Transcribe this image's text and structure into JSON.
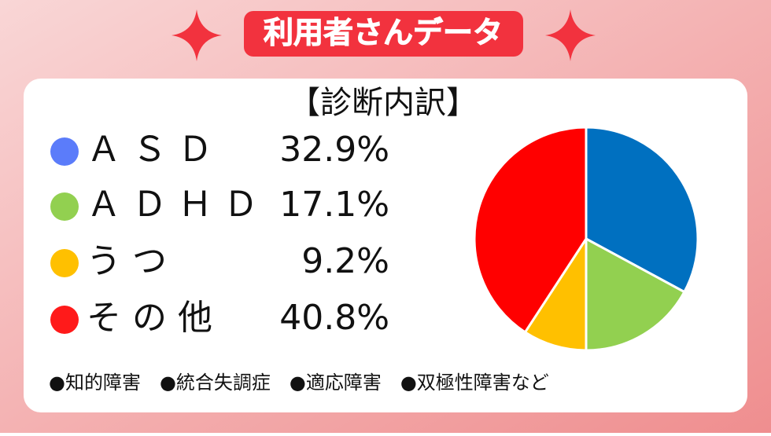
{
  "chart_data": {
    "type": "pie",
    "title": "利用者さんデータ",
    "subtitle": "【診断内訳】",
    "categories": [
      "ＡＳＤ",
      "ＡＤＨＤ",
      "うつ",
      "その他"
    ],
    "values": [
      32.9,
      17.1,
      9.2,
      40.8
    ],
    "value_labels": [
      "32.9%",
      "17.1%",
      "9.2%",
      "40.8%"
    ],
    "colors": [
      "#0070c0",
      "#92d050",
      "#ffc000",
      "#ff0000"
    ],
    "legend_colors": [
      "#5b7cfa",
      "#92d050",
      "#ffc000",
      "#ff1a1a"
    ],
    "annotation": "●知的障害　●統合失調症　●適応障害　●双極性障害など"
  }
}
